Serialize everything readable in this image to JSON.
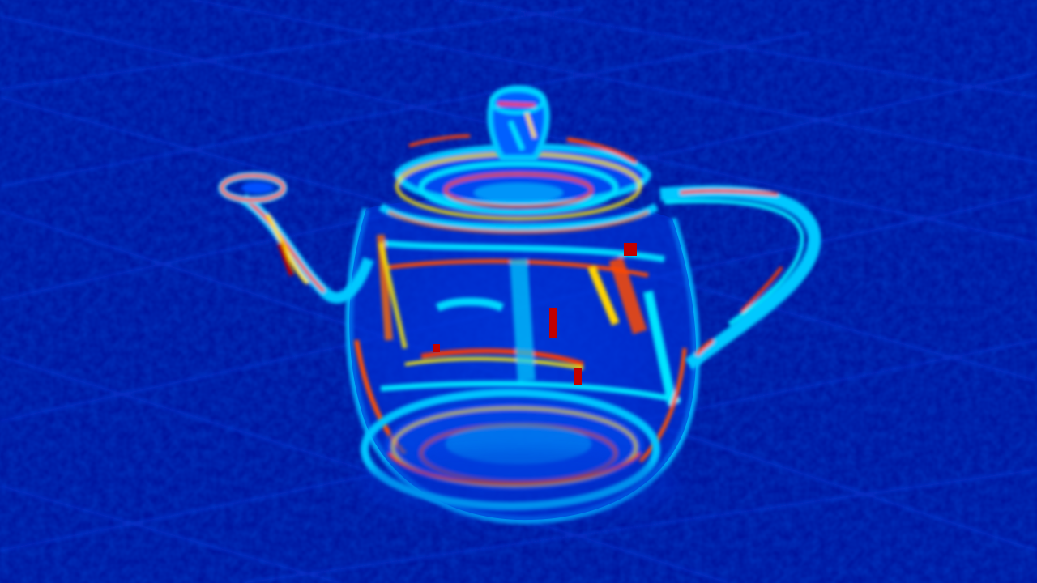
{
  "image": {
    "subject": "teapot-heatmap",
    "colormap": {
      "low": "#00108f",
      "lowmid": "#0040ff",
      "mid": "#00c8ff",
      "midhigh": "#ffee00",
      "high": "#ff3a00",
      "peak": "#a00000"
    },
    "background_color": "#00109a",
    "floor_grid_color": "#0a3ad8"
  }
}
